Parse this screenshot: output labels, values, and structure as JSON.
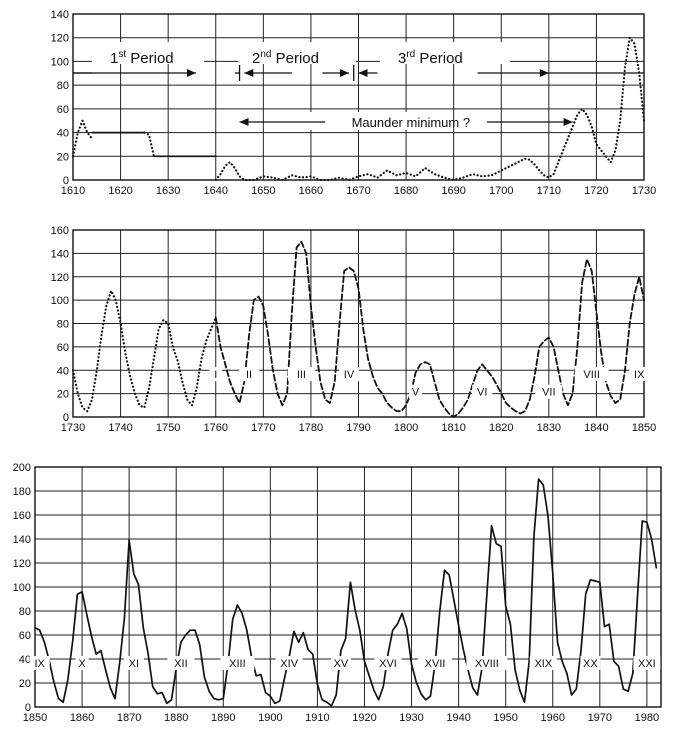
{
  "chart_data": [
    {
      "type": "line",
      "title": "",
      "xlabel": "",
      "ylabel": "",
      "xlim": [
        1610,
        1730
      ],
      "ylim": [
        0,
        140
      ],
      "x_ticks": [
        1610,
        1620,
        1630,
        1640,
        1650,
        1660,
        1670,
        1680,
        1690,
        1700,
        1710,
        1720,
        1730
      ],
      "y_ticks": [
        0,
        20,
        40,
        60,
        80,
        100,
        120,
        140
      ],
      "grid": true,
      "legend": "none",
      "series": [
        {
          "style": "dotted",
          "x": [
            1610,
            1611,
            1612,
            1613,
            1614
          ],
          "y": [
            20,
            40,
            50,
            40,
            35
          ]
        },
        {
          "style": "solid",
          "x": [
            1614,
            1625
          ],
          "y": [
            40,
            40
          ]
        },
        {
          "style": "dotted",
          "x": [
            1625,
            1626,
            1627
          ],
          "y": [
            40,
            38,
            20
          ]
        },
        {
          "style": "solid",
          "x": [
            1627,
            1640
          ],
          "y": [
            20,
            20
          ]
        },
        {
          "style": "dotted",
          "x": [
            1640,
            1641,
            1642,
            1643,
            1644,
            1645,
            1646,
            1648,
            1650,
            1652,
            1654,
            1656,
            1658,
            1660,
            1662,
            1664,
            1666,
            1668,
            1670,
            1672,
            1674,
            1676,
            1678,
            1680,
            1682,
            1684,
            1686,
            1688,
            1690,
            1692,
            1694,
            1696,
            1698,
            1700,
            1702,
            1704,
            1705,
            1706,
            1707,
            1708,
            1709,
            1710,
            1711,
            1712,
            1713,
            1714,
            1715,
            1716,
            1717,
            1718,
            1719,
            1720,
            1721,
            1722,
            1723,
            1724,
            1725,
            1726,
            1727,
            1728,
            1729,
            1730
          ],
          "y": [
            0,
            5,
            12,
            15,
            10,
            3,
            0,
            0,
            3,
            2,
            0,
            4,
            2,
            3,
            0,
            0,
            2,
            0,
            3,
            5,
            2,
            8,
            4,
            6,
            3,
            10,
            5,
            2,
            0,
            2,
            5,
            3,
            4,
            8,
            12,
            16,
            18,
            17,
            13,
            8,
            4,
            2,
            5,
            15,
            25,
            35,
            45,
            55,
            60,
            55,
            45,
            30,
            25,
            20,
            15,
            25,
            50,
            95,
            120,
            115,
            90,
            50
          ]
        }
      ],
      "annotations": [
        {
          "text": "1",
          "sup": "st",
          "rest": " Period"
        },
        {
          "text": "2",
          "sup": "nd",
          "rest": " Period"
        },
        {
          "text": "3",
          "sup": "rd",
          "rest": " Period"
        },
        {
          "text": "Maunder  minimum ?"
        }
      ]
    },
    {
      "type": "line",
      "title": "",
      "xlabel": "",
      "ylabel": "",
      "xlim": [
        1730,
        1850
      ],
      "ylim": [
        0,
        160
      ],
      "x_ticks": [
        1730,
        1740,
        1750,
        1760,
        1770,
        1780,
        1790,
        1800,
        1810,
        1820,
        1830,
        1840,
        1850
      ],
      "y_ticks": [
        0,
        20,
        40,
        60,
        80,
        100,
        120,
        140,
        160
      ],
      "grid": true,
      "legend": "none",
      "series": [
        {
          "style": "dotted",
          "x": [
            1730,
            1731,
            1732,
            1733,
            1734,
            1735,
            1736,
            1737,
            1738,
            1739,
            1740,
            1741,
            1742,
            1743,
            1744,
            1745,
            1746,
            1747,
            1748,
            1749,
            1750,
            1751,
            1752,
            1753,
            1754,
            1755,
            1756,
            1757,
            1758,
            1759,
            1760
          ],
          "y": [
            40,
            20,
            8,
            5,
            15,
            40,
            70,
            95,
            108,
            100,
            80,
            55,
            35,
            20,
            10,
            8,
            25,
            50,
            75,
            83,
            80,
            60,
            48,
            30,
            15,
            10,
            25,
            50,
            65,
            75,
            85
          ]
        },
        {
          "style": "dashed",
          "x": [
            1760,
            1761,
            1762,
            1763,
            1764,
            1765,
            1766,
            1767,
            1768,
            1769,
            1770,
            1771,
            1772,
            1773,
            1774,
            1775,
            1776,
            1777,
            1778,
            1779,
            1780,
            1781,
            1782,
            1783,
            1784,
            1785,
            1786,
            1787,
            1788,
            1789,
            1790,
            1791,
            1792,
            1793,
            1794,
            1795,
            1796,
            1797,
            1798,
            1799,
            1800,
            1801,
            1802,
            1803,
            1804,
            1805,
            1806,
            1807,
            1808,
            1809,
            1810,
            1811,
            1812,
            1813,
            1814,
            1815,
            1816,
            1817,
            1818,
            1819,
            1820,
            1821,
            1822,
            1823,
            1824,
            1825,
            1826,
            1827,
            1828,
            1829,
            1830,
            1831,
            1832,
            1833,
            1834,
            1835,
            1836,
            1837,
            1838,
            1839,
            1840,
            1841,
            1842,
            1843,
            1844,
            1845,
            1846,
            1847,
            1848,
            1849,
            1850
          ],
          "y": [
            85,
            60,
            45,
            30,
            20,
            12,
            30,
            70,
            100,
            103,
            95,
            70,
            40,
            20,
            10,
            20,
            90,
            145,
            150,
            140,
            95,
            60,
            30,
            15,
            12,
            30,
            80,
            125,
            128,
            125,
            110,
            75,
            50,
            35,
            25,
            20,
            12,
            8,
            5,
            5,
            10,
            20,
            38,
            45,
            47,
            45,
            30,
            15,
            8,
            3,
            0,
            3,
            8,
            15,
            28,
            40,
            45,
            40,
            35,
            28,
            20,
            12,
            8,
            5,
            3,
            5,
            15,
            35,
            60,
            65,
            68,
            60,
            40,
            20,
            10,
            20,
            60,
            115,
            135,
            125,
            90,
            55,
            30,
            18,
            12,
            15,
            40,
            80,
            105,
            120,
            100
          ]
        }
      ],
      "cycle_labels": [
        "I",
        "II",
        "III",
        "IV",
        "V",
        "VI",
        "VII",
        "VIII",
        "IX"
      ]
    },
    {
      "type": "line",
      "title": "",
      "xlabel": "",
      "ylabel": "",
      "xlim": [
        1850,
        1983
      ],
      "ylim": [
        0,
        200
      ],
      "x_ticks": [
        1850,
        1860,
        1870,
        1880,
        1890,
        1900,
        1910,
        1920,
        1930,
        1940,
        1950,
        1960,
        1970,
        1980
      ],
      "y_ticks": [
        0,
        20,
        40,
        60,
        80,
        100,
        120,
        140,
        160,
        180,
        200
      ],
      "grid": true,
      "legend": "none",
      "series": [
        {
          "style": "solid",
          "x": [
            1850,
            1851,
            1852,
            1853,
            1854,
            1855,
            1856,
            1857,
            1858,
            1859,
            1860,
            1861,
            1862,
            1863,
            1864,
            1865,
            1866,
            1867,
            1868,
            1869,
            1870,
            1871,
            1872,
            1873,
            1874,
            1875,
            1876,
            1877,
            1878,
            1879,
            1880,
            1881,
            1882,
            1883,
            1884,
            1885,
            1886,
            1887,
            1888,
            1889,
            1890,
            1891,
            1892,
            1893,
            1894,
            1895,
            1896,
            1897,
            1898,
            1899,
            1900,
            1901,
            1902,
            1903,
            1904,
            1905,
            1906,
            1907,
            1908,
            1909,
            1910,
            1911,
            1912,
            1913,
            1914,
            1915,
            1916,
            1917,
            1918,
            1919,
            1920,
            1921,
            1922,
            1923,
            1924,
            1925,
            1926,
            1927,
            1928,
            1929,
            1930,
            1931,
            1932,
            1933,
            1934,
            1935,
            1936,
            1937,
            1938,
            1939,
            1940,
            1941,
            1942,
            1943,
            1944,
            1945,
            1946,
            1947,
            1948,
            1949,
            1950,
            1951,
            1952,
            1953,
            1954,
            1955,
            1956,
            1957,
            1958,
            1959,
            1960,
            1961,
            1962,
            1963,
            1964,
            1965,
            1966,
            1967,
            1968,
            1969,
            1970,
            1971,
            1972,
            1973,
            1974,
            1975,
            1976,
            1977,
            1978,
            1979,
            1980,
            1981,
            1982
          ],
          "y": [
            66,
            64,
            54,
            39,
            21,
            7,
            4,
            23,
            55,
            94,
            96,
            77,
            59,
            44,
            47,
            31,
            16,
            7,
            37,
            74,
            139,
            111,
            102,
            66,
            45,
            17,
            11,
            12,
            3,
            6,
            32,
            54,
            60,
            64,
            64,
            52,
            25,
            13,
            7,
            6,
            7,
            36,
            73,
            85,
            78,
            64,
            42,
            26,
            27,
            12,
            9,
            3,
            5,
            24,
            42,
            63,
            54,
            62,
            48,
            44,
            19,
            6,
            4,
            1,
            10,
            47,
            57,
            104,
            81,
            64,
            38,
            26,
            14,
            6,
            17,
            44,
            64,
            69,
            78,
            65,
            36,
            21,
            11,
            6,
            9,
            36,
            80,
            114,
            110,
            89,
            68,
            48,
            31,
            16,
            10,
            33,
            93,
            151,
            136,
            134,
            84,
            69,
            31,
            14,
            4,
            38,
            142,
            190,
            185,
            159,
            112,
            54,
            38,
            28,
            10,
            15,
            47,
            94,
            106,
            105,
            104,
            67,
            69,
            38,
            34,
            15,
            13,
            28,
            92,
            155,
            154,
            140,
            116
          ]
        }
      ],
      "cycle_labels": [
        "IX",
        "X",
        "XI",
        "XII",
        "XIII",
        "XIV",
        "XV",
        "XVI",
        "XVII",
        "XVIII",
        "XIX",
        "XX",
        "XXI"
      ]
    }
  ]
}
